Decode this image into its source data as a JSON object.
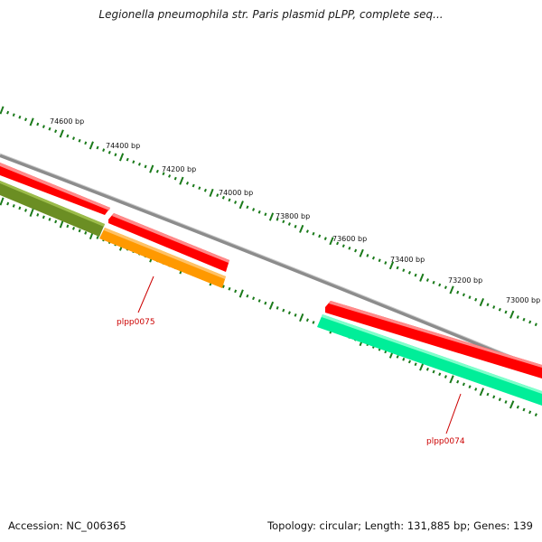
{
  "title": "Legionella pneumophila str. Paris plasmid pLPP, complete seq...",
  "footer": {
    "accession": "Accession: NC_006365",
    "summary": "Topology: circular; Length: 131,885 bp; Genes: 139"
  },
  "colors": {
    "backbone": "#8c8c8c",
    "forward_feature": "#ff0000",
    "reverse_feature_dark": "#6b8e23",
    "reverse_feature_orange": "#ff9900",
    "reverse_feature_teal": "#00ee99",
    "tick": "#1a7a1a",
    "gene_label": "#cc0000"
  },
  "ruler_labels": [
    "74600 bp",
    "74400 bp",
    "74200 bp",
    "74000 bp",
    "73800 bp",
    "73600 bp",
    "73400 bp",
    "73200 bp",
    "73000 bp"
  ],
  "gene_labels": [
    "plpp0075",
    "plpp0074"
  ]
}
